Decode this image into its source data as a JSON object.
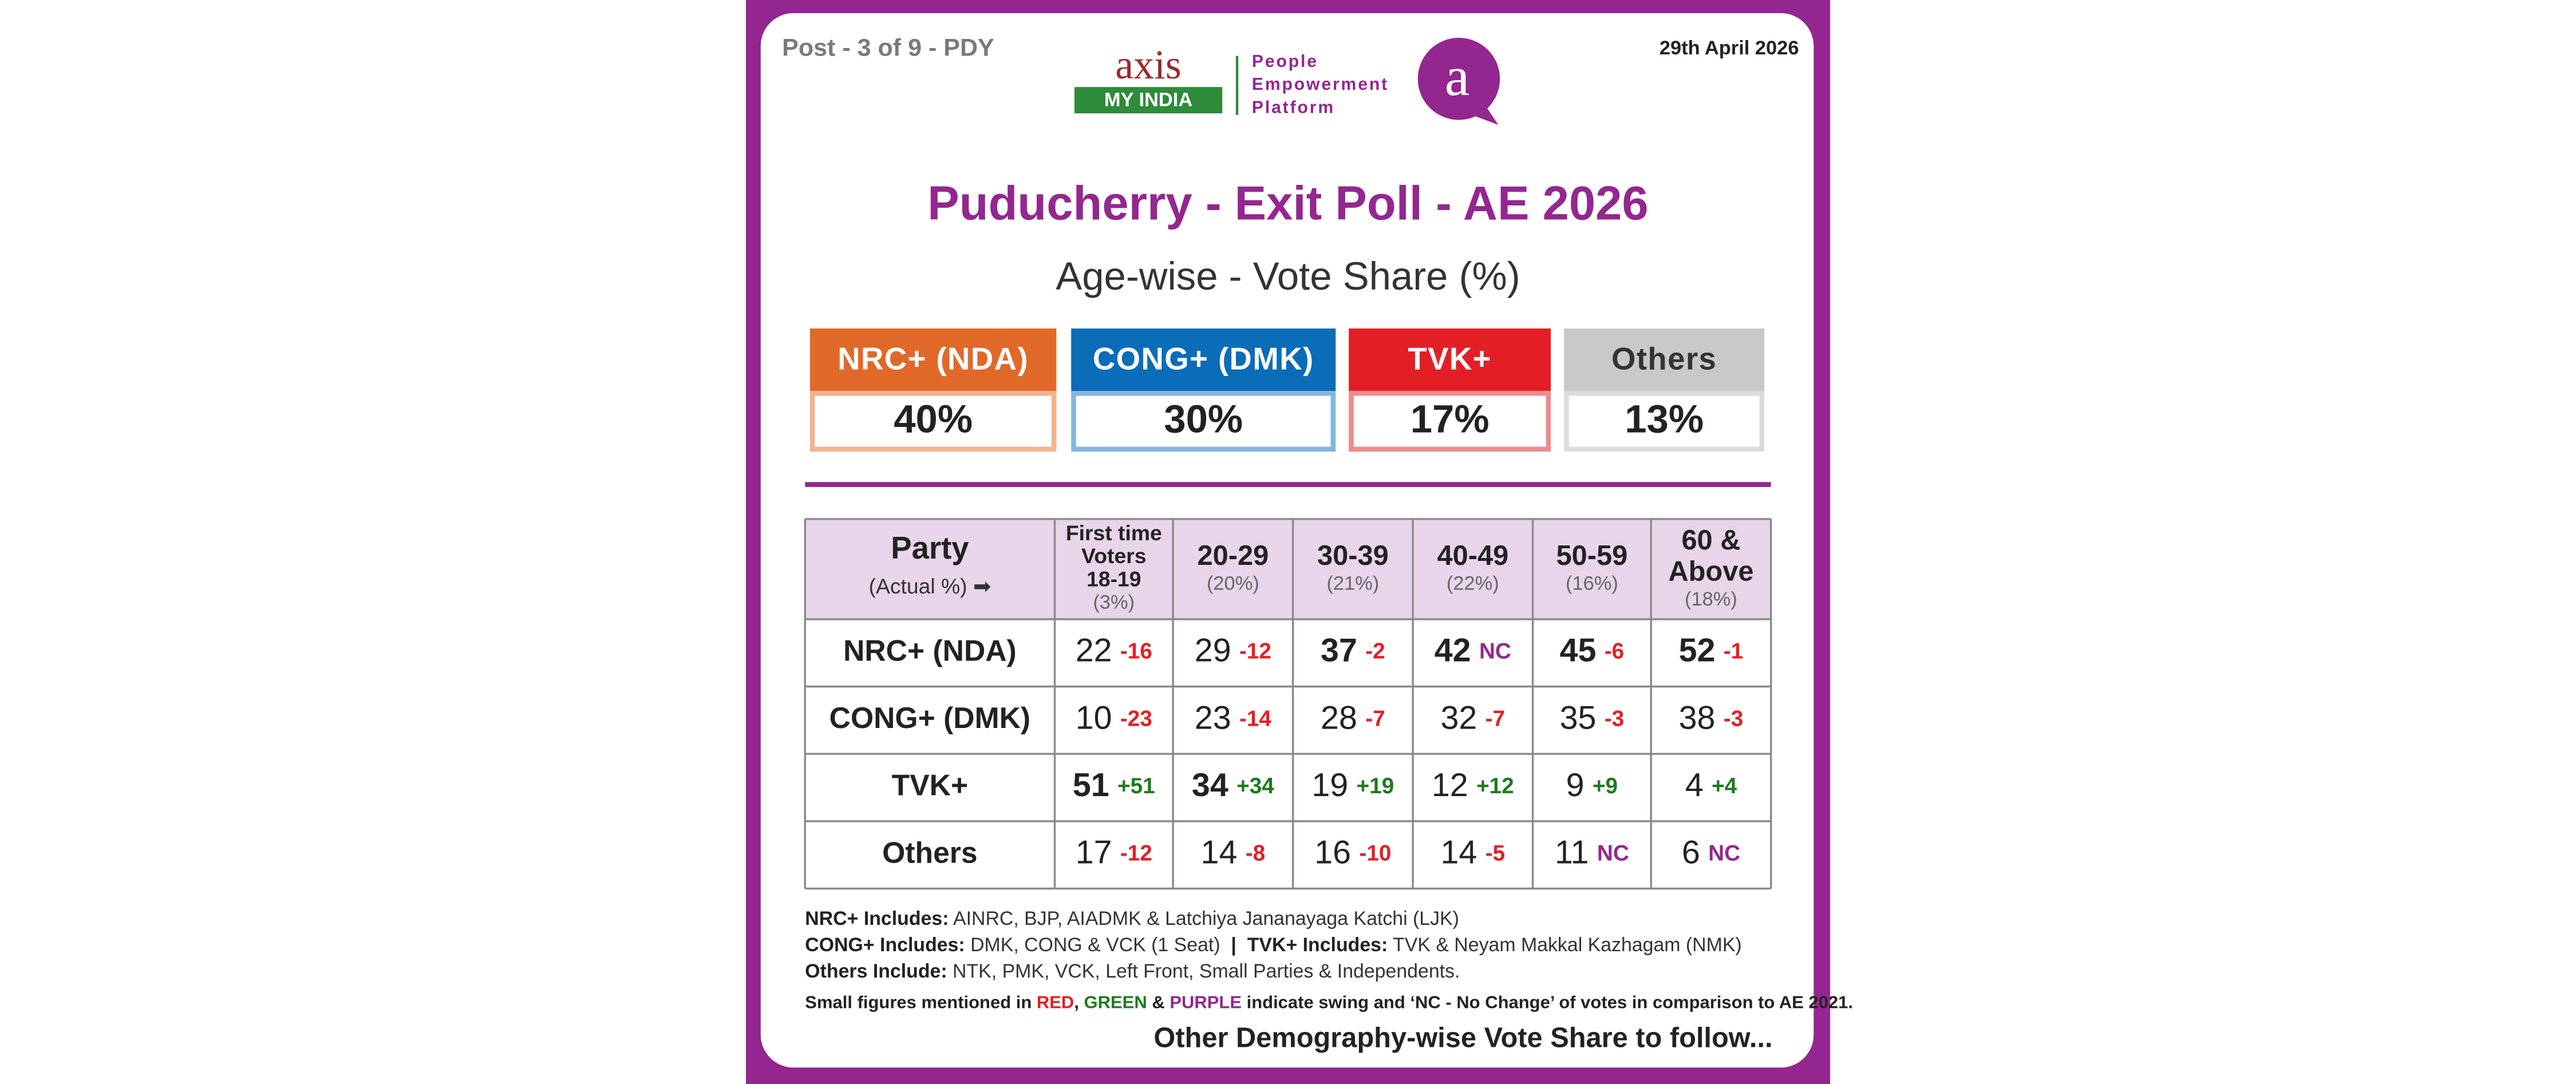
{
  "header": {
    "post": "Post - 3 of 9 - PDY",
    "date": "29th April 2026",
    "logo": {
      "brand_top": "axis",
      "brand_bottom": "MY INDIA",
      "tagline": [
        "People",
        "Empowerment",
        "Platform"
      ],
      "badge": "a"
    }
  },
  "title": "Puducherry - Exit Poll - AE 2026",
  "subtitle": "Age-wise - Vote Share (%)",
  "summary": [
    {
      "party": "NRC+ (NDA)",
      "share": "40%",
      "color": "#e0692a",
      "border": "#f0b48f",
      "text_color": "#ffffff"
    },
    {
      "party": "CONG+ (DMK)",
      "share": "30%",
      "color": "#0b6cb8",
      "border": "#83b6df",
      "text_color": "#ffffff"
    },
    {
      "party": "TVK+",
      "share": "17%",
      "color": "#e31f26",
      "border": "#ee8b8f",
      "text_color": "#ffffff"
    },
    {
      "party": "Others",
      "share": "13%",
      "color": "#c8c8c8",
      "border": "#dcdcdc",
      "text_color": "#333333"
    }
  ],
  "table": {
    "corner": {
      "label": "Party",
      "note": "(Actual %) ➡"
    },
    "columns": [
      {
        "lines": [
          "First time",
          "Voters",
          "18-19"
        ],
        "share": "(3%)"
      },
      {
        "lines": [
          "20-29"
        ],
        "share": "(20%)"
      },
      {
        "lines": [
          "30-39"
        ],
        "share": "(21%)"
      },
      {
        "lines": [
          "40-49"
        ],
        "share": "(22%)"
      },
      {
        "lines": [
          "50-59"
        ],
        "share": "(16%)"
      },
      {
        "lines": [
          "60 &",
          "Above"
        ],
        "share": "(18%)"
      }
    ],
    "rows": [
      {
        "party": "NRC+ (NDA)",
        "cells": [
          {
            "value": "22",
            "swing": "-16"
          },
          {
            "value": "29",
            "swing": "-12"
          },
          {
            "value": "37",
            "swing": "-2",
            "bold": true
          },
          {
            "value": "42",
            "swing": "NC",
            "bold": true
          },
          {
            "value": "45",
            "swing": "-6",
            "bold": true
          },
          {
            "value": "52",
            "swing": "-1",
            "bold": true
          }
        ]
      },
      {
        "party": "CONG+ (DMK)",
        "cells": [
          {
            "value": "10",
            "swing": "-23"
          },
          {
            "value": "23",
            "swing": "-14"
          },
          {
            "value": "28",
            "swing": "-7"
          },
          {
            "value": "32",
            "swing": "-7"
          },
          {
            "value": "35",
            "swing": "-3"
          },
          {
            "value": "38",
            "swing": "-3"
          }
        ]
      },
      {
        "party": "TVK+",
        "cells": [
          {
            "value": "51",
            "swing": "+51",
            "bold": true
          },
          {
            "value": "34",
            "swing": "+34",
            "bold": true
          },
          {
            "value": "19",
            "swing": "+19"
          },
          {
            "value": "12",
            "swing": "+12"
          },
          {
            "value": "9",
            "swing": "+9"
          },
          {
            "value": "4",
            "swing": "+4"
          }
        ]
      },
      {
        "party": "Others",
        "cells": [
          {
            "value": "17",
            "swing": "-12"
          },
          {
            "value": "14",
            "swing": "-8"
          },
          {
            "value": "16",
            "swing": "-10"
          },
          {
            "value": "14",
            "swing": "-5"
          },
          {
            "value": "11",
            "swing": "NC"
          },
          {
            "value": "6",
            "swing": "NC"
          }
        ]
      }
    ]
  },
  "notes": [
    [
      {
        "text": "NRC+ Includes:",
        "style": "bold"
      },
      {
        "text": " AINRC, BJP, AIADMK & Latchiya Jananayaga Katchi (LJK)",
        "style": "plain"
      }
    ],
    [
      {
        "text": "CONG+ Includes:",
        "style": "bold"
      },
      {
        "text": " DMK, CONG & VCK (1 Seat)  ",
        "style": "plain"
      },
      {
        "text": "|",
        "style": "bold"
      },
      {
        "text": "  TVK+ Includes:",
        "style": "bold"
      },
      {
        "text": " TVK & Neyam Makkal Kazhagam (NMK)",
        "style": "plain"
      }
    ],
    [
      {
        "text": "Others Include:",
        "style": "bold"
      },
      {
        "text": " NTK, PMK, VCK, Left Front, Small Parties & Independents.",
        "style": "plain"
      }
    ],
    [
      {
        "text": "Small figures mentioned in ",
        "style": "bold"
      },
      {
        "text": "RED",
        "style": "red"
      },
      {
        "text": ", ",
        "style": "bold"
      },
      {
        "text": "GREEN",
        "style": "green"
      },
      {
        "text": " & ",
        "style": "bold"
      },
      {
        "text": "PURPLE",
        "style": "purple"
      },
      {
        "text": " indicate swing and ‘NC - No Change’ of votes in comparison to AE 2021.",
        "style": "bold"
      }
    ]
  ],
  "footer": "Other Demography-wise Vote Share to follow..."
}
